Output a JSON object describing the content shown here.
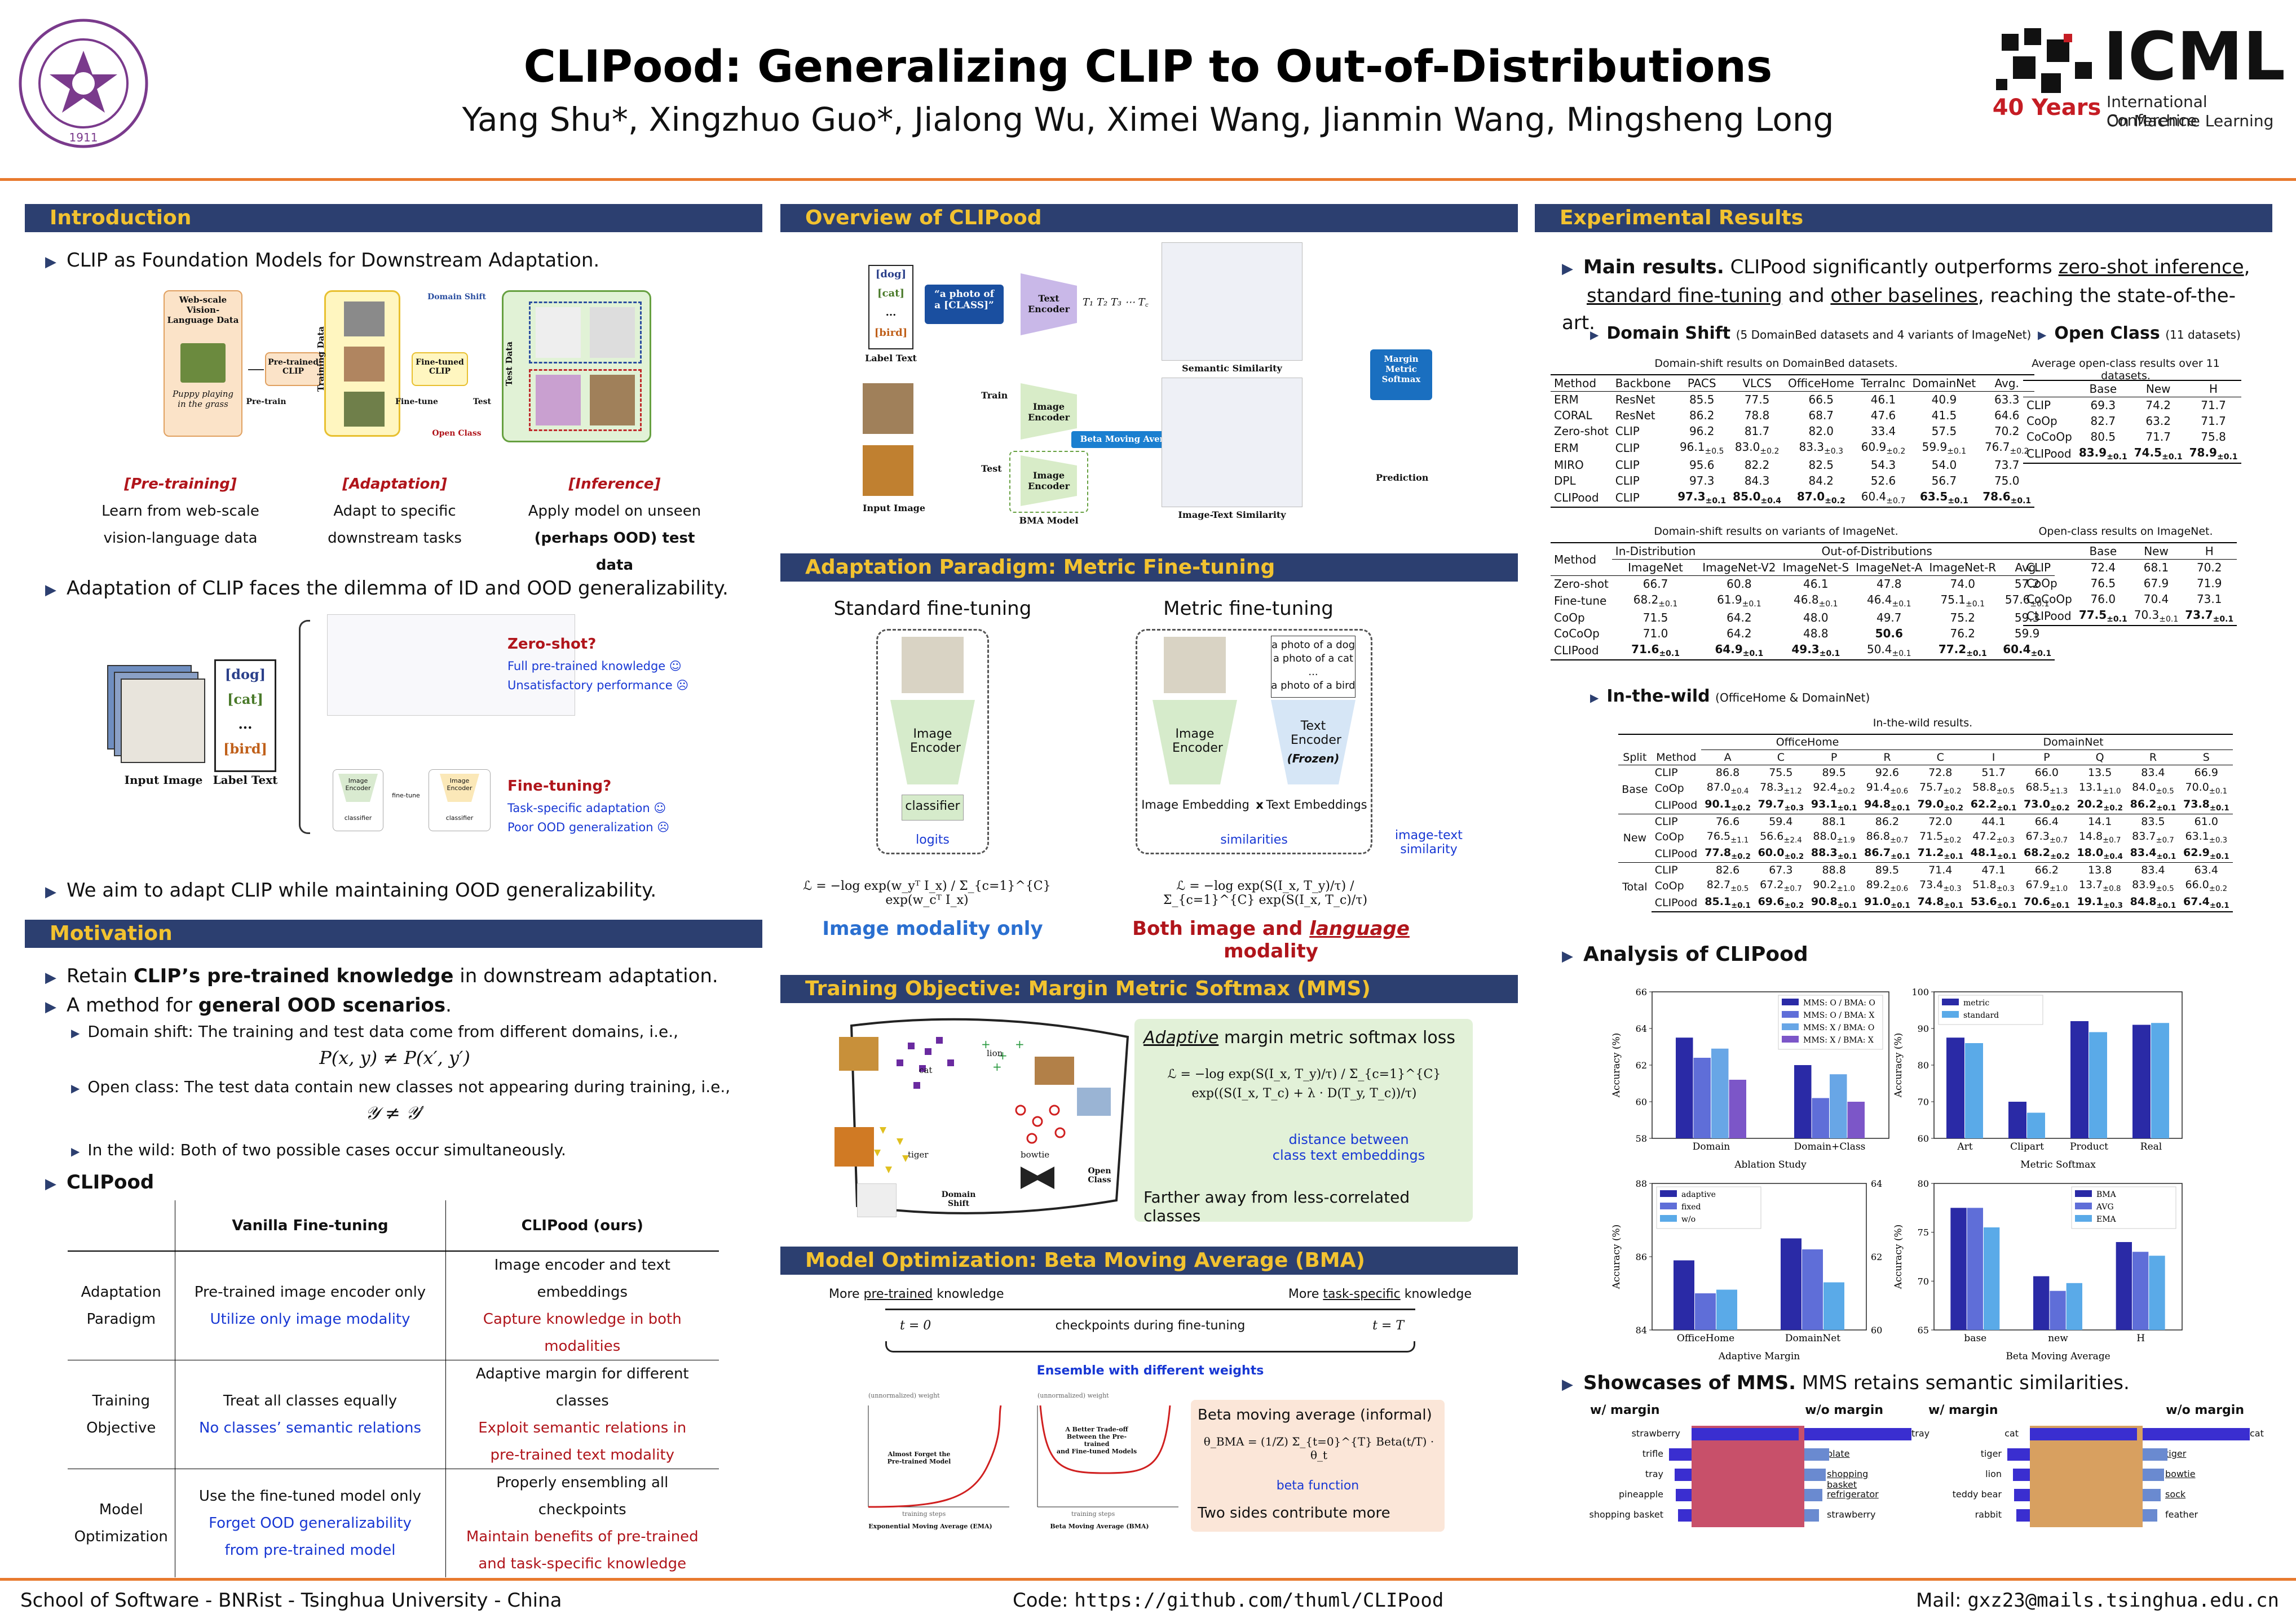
{
  "header": {
    "title": "CLIPood: Generalizing CLIP to Out-of-Distributions",
    "authors": "Yang Shu*, Xingzhuo Guo*, Jialong Wu, Ximei Wang, Jianmin Wang, Mingsheng Long",
    "logo_icml": "ICML",
    "logo_icml_sub1": "International Conference",
    "logo_icml_sub2": "On Machine Learning",
    "logo_40": "40 Years",
    "logo_tsinghua_year": "1911"
  },
  "intro": {
    "heading": "Introduction",
    "b1": "CLIP as Foundation Models for Downstream Adaptation.",
    "fig1": {
      "web": "Web-scale Vision-Language Data",
      "puppy": "Puppy playing in the grass",
      "pretrain": "Pre-train",
      "pretrained_clip": "Pre-trained CLIP",
      "training_data": "Training Data",
      "finetune": "Fine-tune",
      "finetuned_clip": "Fine-tuned CLIP",
      "test": "Test",
      "test_data": "Test Data",
      "domain_shift": "Domain Shift",
      "open_class": "Open Class"
    },
    "stages": [
      {
        "title": "[Pre-training]",
        "l1": "Learn from web-scale",
        "l2": "vision-language data"
      },
      {
        "title": "[Adaptation]",
        "l1": "Adapt to specific",
        "l2": "downstream tasks"
      },
      {
        "title": "[Inference]",
        "l1": "Apply model on unseen",
        "l2": "(perhaps OOD) test data"
      }
    ],
    "b2": "Adaptation of CLIP faces the dilemma of ID and OOD generalizability.",
    "fig2": {
      "labels": [
        "[dog]",
        "[cat]",
        "...",
        "[bird]"
      ],
      "input": "Input Image",
      "label_text": "Label Text",
      "zs_title": "Zero-shot?",
      "zs_1": "Full pre-trained knowledge ☺",
      "zs_2": "Unsatisfactory performance ☹",
      "ft_title": "Fine-tuning?",
      "ft_1": "Task-specific adaptation ☺",
      "ft_2": "Poor OOD generalization ☹",
      "img_enc": "Image Encoder",
      "classifier": "classifier",
      "finetune": "fine-tune"
    },
    "b3": "We aim to adapt CLIP while maintaining OOD generalizability."
  },
  "motivation": {
    "heading": "Motivation",
    "b1_pre": "Retain ",
    "b1_bold": "CLIP’s pre-trained knowledge",
    "b1_post": " in downstream adaptation.",
    "b2_pre": "A method for ",
    "b2_bold": "general OOD scenarios",
    "b2_post": ".",
    "s1": "Domain shift: The training and test data come from different domains, i.e.,",
    "eq1": "P(x, y) ≠ P(x′, y′)",
    "s2": "Open class: The test data contain new classes not appearing during training, i.e.,",
    "eq2": "𝒴 ≠ 𝒴′",
    "s3": "In the wild: Both of two possible cases occur simultaneously.",
    "clipood": "CLIPood",
    "table": {
      "h1": "Vanilla Fine-tuning",
      "h2": "CLIPood (ours)",
      "rows": [
        {
          "n1": "Adaptation",
          "n2": "Paradigm",
          "v1": "Pre-trained image encoder only",
          "v2": "Utilize only image modality",
          "c1": "Image encoder and text embeddings",
          "c2": "Capture knowledge in both",
          "c3": "modalities"
        },
        {
          "n1": "Training",
          "n2": "Objective",
          "v1": "Treat all classes equally",
          "v2": "No classes’ semantic relations",
          "c1": "Adaptive margin for different classes",
          "c2": "Exploit semantic relations in",
          "c3": "pre-trained text modality"
        },
        {
          "n1": "Model",
          "n2": "Optimization",
          "v1": "Use the fine-tuned model only",
          "v2": "Forget OOD generalizability",
          "v3": "from pre-trained model",
          "c1": "Properly ensembling all checkpoints",
          "c2": "Maintain benefits of pre-trained",
          "c3": "and task-specific knowledge"
        }
      ]
    }
  },
  "overview": {
    "heading": "Overview of CLIPood",
    "labels": [
      "[dog]",
      "[cat]",
      "...",
      "[bird]"
    ],
    "label_text": "Label Text",
    "prompt1": "“a photo of",
    "prompt2": "a [CLASS]”",
    "text_encoder": "Text Encoder",
    "image_encoder": "Image Encoder",
    "train": "Train",
    "test": "Test",
    "bma": "Beta Moving Average",
    "bma_model": "BMA Model",
    "input_image": "Input Image",
    "semantic_similarity": "Semantic Similarity",
    "image_text_similarity": "Image-Text Similarity",
    "mms": "Margin Metric Softmax",
    "prediction": "Prediction"
  },
  "paradigm": {
    "heading": "Adaptation Paradigm: Metric Fine-tuning",
    "std_title": "Standard fine-tuning",
    "metric_title": "Metric fine-tuning",
    "image_encoder": "Image Encoder",
    "classifier": "classifier",
    "logits": "logits",
    "text_encoder": "Text Encoder",
    "frozen": "(Frozen)",
    "prompts": [
      "a photo of a dog",
      "a photo of a cat",
      "...",
      "a photo of a bird"
    ],
    "img_emb": "Image Embedding",
    "x": "x",
    "txt_emb": "Text Embeddings",
    "similarities": "similarities",
    "its1": "image-text",
    "its2": "similarity",
    "loss1": "ℒ = −log exp(w_yᵀ I_x) / Σ_{c=1}^{C} exp(w_cᵀ I_x)",
    "loss2": "ℒ = −log exp(S(I_x, T_y)/τ) / Σ_{c=1}^{C} exp(S(I_x, T_c)/τ)",
    "img_only": "Image modality only",
    "both_pre": "Both image and ",
    "both_lang": "language",
    "both_post": " modality"
  },
  "mms": {
    "heading": "Training Objective: Margin Metric Softmax (MMS)",
    "title_u": "Adaptive",
    "title_rest": " margin metric softmax loss",
    "loss": "ℒ = −log exp(S(I_x, T_y)/τ) / Σ_{c=1}^{C} exp((S(I_x, T_c) + λ · D(T_y, T_c))/τ)",
    "dist1": "distance between",
    "dist2": "class text embeddings",
    "far": "Farther away from less-correlated classes",
    "lbl_cat": "cat",
    "lbl_lion": "lion",
    "lbl_tiger": "tiger",
    "lbl_bowtie": "bowtie",
    "open_class": "Open Class",
    "domain_shift": "Domain Shift"
  },
  "bma": {
    "heading": "Model Optimization: Beta Moving Average (BMA)",
    "more_pre": "More ",
    "pre_u": "pre-trained",
    "pre_post": " knowledge",
    "task_u": "task-specific",
    "task_post": " knowledge",
    "t0": "t = 0",
    "tT": "t = T",
    "ckpt": "checkpoints during fine-tuning",
    "ensemble": "Ensemble with different weights",
    "ema_title": "Exponential Moving Average (EMA)",
    "bma_title": "Beta Moving Average (BMA)",
    "ema_note1": "Almost Forget the",
    "ema_note2": "Pre-trained Model",
    "bma_note1": "A Better Trade-off",
    "bma_note2": "Between the Pre-trained",
    "bma_note3": "and Fine-tuned Models",
    "unnorm": "(unnormalized) weight",
    "steps": "training steps",
    "box_title": "Beta moving average (informal)",
    "box_eq": "θ_BMA = (1/Z) Σ_{t=0}^{T} Beta(t/T) · θ_t",
    "beta_fn": "beta function",
    "two_sides": "Two sides contribute more"
  },
  "results": {
    "heading": "Experimental Results",
    "main_bold": "Main results.",
    "main_text": " CLIPood significantly outperforms ",
    "u1": "zero-shot inference",
    "u2": "standard fine-tuning",
    "and": " and ",
    "u3": "other baselines",
    "main_end": ", reaching the state-of-the-art.",
    "ds_title": "Domain Shift",
    "ds_sub": "(5 DomainBed datasets and 4 variants of ImageNet)",
    "oc_title": "Open Class",
    "oc_sub": "(11 datasets)",
    "ds_cap": "Domain-shift results on DomainBed datasets.",
    "ds_head": [
      "Method",
      "Backbone",
      "PACS",
      "VLCS",
      "OfficeHome",
      "TerraInc",
      "DomainNet",
      "Avg."
    ],
    "ds_rows": [
      [
        "ERM",
        "ResNet",
        "85.5",
        "77.5",
        "66.5",
        "46.1",
        "40.9",
        "63.3"
      ],
      [
        "CORAL",
        "ResNet",
        "86.2",
        "78.8",
        "68.7",
        "47.6",
        "41.5",
        "64.6"
      ],
      [
        "Zero-shot",
        "CLIP",
        "96.2",
        "81.7",
        "82.0",
        "33.4",
        "57.5",
        "70.2"
      ],
      [
        "ERM",
        "CLIP",
        "96.1±0.5",
        "83.0±0.2",
        "83.3±0.3",
        "60.9±0.2",
        "59.9±0.1",
        "76.7±0.2"
      ],
      [
        "MIRO",
        "CLIP",
        "95.6",
        "82.2",
        "82.5",
        "54.3",
        "54.0",
        "73.7"
      ],
      [
        "DPL",
        "CLIP",
        "97.3",
        "84.3",
        "84.2",
        "52.6",
        "56.7",
        "75.0"
      ],
      [
        "CLIPood",
        "CLIP",
        "97.3±0.1",
        "85.0±0.4",
        "87.0±0.2",
        "60.4±0.7",
        "63.5±0.1",
        "78.6±0.1"
      ]
    ],
    "in_cap": "Domain-shift results on variants of ImageNet.",
    "in_head1": [
      "Method",
      "In-Distribution",
      "Out-of-Distributions"
    ],
    "in_head2": [
      "ImageNet",
      "ImageNet-V2",
      "ImageNet-S",
      "ImageNet-A",
      "ImageNet-R",
      "Avg."
    ],
    "in_rows": [
      [
        "Zero-shot",
        "66.7",
        "60.8",
        "46.1",
        "47.8",
        "74.0",
        "57.2"
      ],
      [
        "Fine-tune",
        "68.2±0.1",
        "61.9±0.1",
        "46.8±0.1",
        "46.4±0.1",
        "75.1±0.1",
        "57.6±0.1"
      ],
      [
        "CoOp",
        "71.5",
        "64.2",
        "48.0",
        "49.7",
        "75.2",
        "59.3"
      ],
      [
        "CoCoOp",
        "71.0",
        "64.2",
        "48.8",
        "50.6",
        "76.2",
        "59.9"
      ],
      [
        "CLIPood",
        "71.6±0.1",
        "64.9±0.1",
        "49.3±0.1",
        "50.4±0.1",
        "77.2±0.1",
        "60.4±0.1"
      ]
    ],
    "oc_cap": "Average open-class results over 11 datasets.",
    "oc_head": [
      "",
      "Base",
      "New",
      "H"
    ],
    "oc_rows": [
      [
        "CLIP",
        "69.3",
        "74.2",
        "71.7"
      ],
      [
        "CoOp",
        "82.7",
        "63.2",
        "71.7"
      ],
      [
        "CoCoOp",
        "80.5",
        "71.7",
        "75.8"
      ],
      [
        "CLIPood",
        "83.9±0.1",
        "74.5±0.1",
        "78.9±0.1"
      ]
    ],
    "oc2_cap": "Open-class results on ImageNet.",
    "oc2_rows": [
      [
        "CLIP",
        "72.4",
        "68.1",
        "70.2"
      ],
      [
        "CoOp",
        "76.5",
        "67.9",
        "71.9"
      ],
      [
        "CoCoOp",
        "76.0",
        "70.4",
        "73.1"
      ],
      [
        "CLIPood",
        "77.5±0.1",
        "70.3±0.1",
        "73.7±0.1"
      ]
    ],
    "iw_title": "In-the-wild",
    "iw_sub": "(OfficeHome & DomainNet)",
    "iw_cap": "In-the-wild results.",
    "iw_groups": [
      "OfficeHome",
      "DomainNet"
    ],
    "iw_head": [
      "Split",
      "Method",
      "A",
      "C",
      "P",
      "R",
      "C",
      "I",
      "P",
      "Q",
      "R",
      "S"
    ],
    "iw_rows": [
      {
        "split": "Base",
        "rows": [
          [
            "CLIP",
            "86.8",
            "75.5",
            "89.5",
            "92.6",
            "72.8",
            "51.7",
            "66.0",
            "13.5",
            "83.4",
            "66.9"
          ],
          [
            "CoOp",
            "87.0±0.4",
            "78.3±1.2",
            "92.4±0.2",
            "91.4±0.6",
            "75.7±0.2",
            "58.8±0.5",
            "68.5±1.3",
            "13.1±1.0",
            "84.0±0.5",
            "70.0±0.1"
          ],
          [
            "CLIPood",
            "90.1±0.2",
            "79.7±0.3",
            "93.1±0.1",
            "94.8±0.1",
            "79.0±0.2",
            "62.2±0.1",
            "73.0±0.2",
            "20.2±0.2",
            "86.2±0.1",
            "73.8±0.1"
          ]
        ]
      },
      {
        "split": "New",
        "rows": [
          [
            "CLIP",
            "76.6",
            "59.4",
            "88.1",
            "86.2",
            "72.0",
            "44.1",
            "66.4",
            "14.1",
            "83.5",
            "61.0"
          ],
          [
            "CoOp",
            "76.5±1.1",
            "56.6±2.4",
            "88.0±1.9",
            "86.8±0.7",
            "71.5±0.2",
            "47.2±0.3",
            "67.3±0.7",
            "14.8±0.7",
            "83.7±0.7",
            "63.1±0.3"
          ],
          [
            "CLIPood",
            "77.8±0.2",
            "60.0±0.2",
            "88.3±0.1",
            "86.7±0.1",
            "71.2±0.1",
            "48.1±0.1",
            "68.2±0.2",
            "18.0±0.4",
            "83.4±0.1",
            "62.9±0.1"
          ]
        ]
      },
      {
        "split": "Total",
        "rows": [
          [
            "CLIP",
            "82.6",
            "67.3",
            "88.8",
            "89.5",
            "71.4",
            "47.1",
            "66.2",
            "13.8",
            "83.4",
            "63.4"
          ],
          [
            "CoOp",
            "82.7±0.5",
            "67.2±0.7",
            "90.2±1.0",
            "89.2±0.6",
            "73.4±0.3",
            "51.8±0.3",
            "67.9±1.0",
            "13.7±0.8",
            "83.9±0.5",
            "66.0±0.2"
          ],
          [
            "CLIPood",
            "85.1±0.1",
            "69.6±0.2",
            "90.8±0.1",
            "91.0±0.1",
            "74.8±0.1",
            "53.6±0.1",
            "70.6±0.1",
            "19.1±0.3",
            "84.8±0.1",
            "67.4±0.1"
          ]
        ]
      }
    ],
    "analysis_title": "Analysis of CLIPood",
    "showcase_bold": "Showcases of MMS.",
    "showcase_text": " MMS retains semantic similarities.",
    "sc1": {
      "left": "w/ margin",
      "right": "w/o margin",
      "l_items": [
        "strawberry",
        "trifle",
        "tray",
        "pineapple",
        "shopping basket"
      ],
      "r_items": [
        "tray",
        "plate",
        "shopping basket",
        "refrigerator",
        "strawberry"
      ]
    },
    "sc2": {
      "left": "w/ margin",
      "right": "w/o margin",
      "l_items": [
        "cat",
        "tiger",
        "lion",
        "teddy bear",
        "rabbit"
      ],
      "r_items": [
        "cat",
        "tiger",
        "bowtie",
        "sock",
        "feather"
      ]
    }
  },
  "chart_data": [
    {
      "type": "bar",
      "title": "",
      "xlabel": "Ablation Study",
      "ylabel": "Accuracy (%)",
      "ylim": [
        58,
        66
      ],
      "yticks": [
        "58",
        "60",
        "62",
        "64",
        "66"
      ],
      "categories": [
        "Domain",
        "Domain+Class"
      ],
      "series": [
        {
          "name": "MMS: O / BMA: O",
          "values": [
            63.5,
            62.0
          ]
        },
        {
          "name": "MMS: O / BMA: X",
          "values": [
            62.4,
            60.2
          ]
        },
        {
          "name": "MMS: X / BMA: O",
          "values": [
            62.9,
            61.5
          ]
        },
        {
          "name": "MMS: X / BMA: X",
          "values": [
            61.2,
            60.0
          ]
        }
      ],
      "colors": [
        "#2a2aa6",
        "#5f6ed8",
        "#68a6e6",
        "#7c56c8"
      ]
    },
    {
      "type": "bar",
      "title": "",
      "xlabel": "Metric Softmax",
      "ylabel": "Accuracy (%)",
      "ylim": [
        60,
        100
      ],
      "yticks": [
        "60",
        "70",
        "80",
        "90",
        "100"
      ],
      "categories": [
        "Art",
        "Clipart",
        "Product",
        "Real"
      ],
      "series": [
        {
          "name": "metric",
          "values": [
            87.5,
            70.0,
            92.0,
            91.0
          ]
        },
        {
          "name": "standard",
          "values": [
            86.0,
            67.0,
            89.0,
            91.5
          ]
        }
      ],
      "colors": [
        "#2a2aa6",
        "#5aaae8"
      ]
    },
    {
      "type": "bar",
      "title": "",
      "xlabel": "Adaptive Margin",
      "ylabel": "Accuracy (%)",
      "ylim": [
        84,
        88
      ],
      "yticks": [
        "84",
        "86",
        "88"
      ],
      "y2lim": [
        60,
        64
      ],
      "y2ticks": [
        "60",
        "62",
        "64"
      ],
      "categories": [
        "OfficeHome",
        "DomainNet"
      ],
      "series": [
        {
          "name": "adaptive",
          "values": [
            85.9,
            62.5
          ]
        },
        {
          "name": "fixed",
          "values": [
            85.0,
            62.2
          ]
        },
        {
          "name": "w/o",
          "values": [
            85.1,
            61.3
          ]
        }
      ],
      "colors": [
        "#2a2aa6",
        "#5f6ed8",
        "#5aaae8"
      ]
    },
    {
      "type": "bar",
      "title": "",
      "xlabel": "Beta Moving Average",
      "ylabel": "Accuracy (%)",
      "ylim": [
        65,
        80
      ],
      "yticks": [
        "65",
        "70",
        "75",
        "80"
      ],
      "categories": [
        "base",
        "new",
        "H"
      ],
      "series": [
        {
          "name": "BMA",
          "values": [
            77.5,
            70.5,
            74.0
          ]
        },
        {
          "name": "AVG",
          "values": [
            77.5,
            69.0,
            73.0
          ]
        },
        {
          "name": "EMA",
          "values": [
            75.5,
            69.8,
            72.6
          ]
        }
      ],
      "colors": [
        "#2a2aa6",
        "#5f6ed8",
        "#5aaae8"
      ]
    }
  ],
  "footer": {
    "left": "School of Software - BNRist - Tsinghua University - China",
    "mid_label": "Code: ",
    "mid_url": "https://github.com/thuml/CLIPood",
    "right_label": "Mail: ",
    "right_mail": "gxz23@mails.tsinghua.edu.cn"
  }
}
